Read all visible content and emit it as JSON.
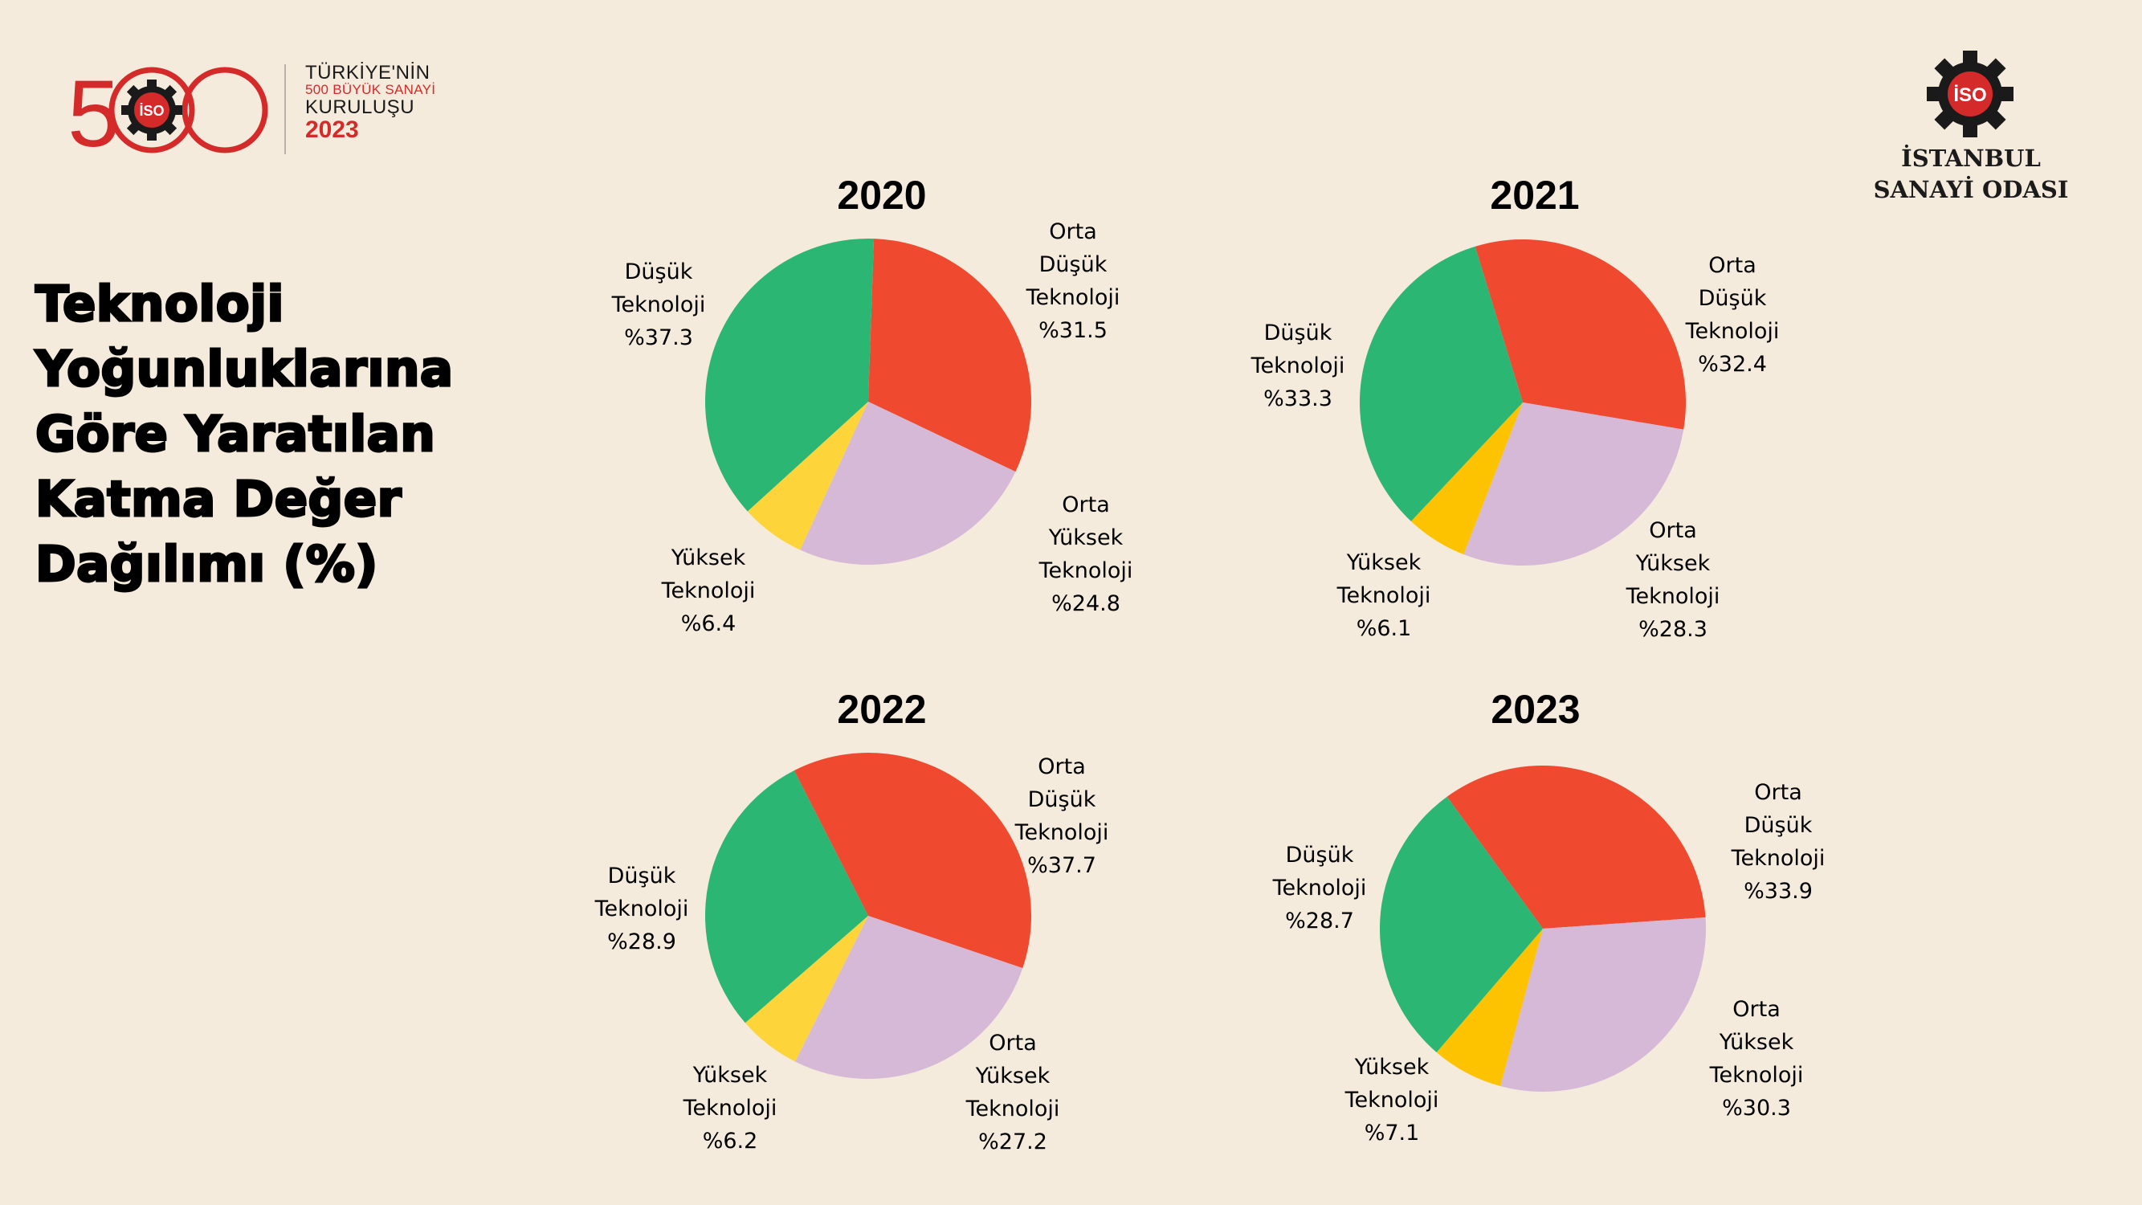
{
  "title": {
    "lines": [
      "Teknoloji",
      "Yoğunluklarına",
      "Göre Yaratılan",
      "Katma Değer",
      "Dağılımı (%)"
    ]
  },
  "logos": {
    "left": {
      "mark": "500",
      "badge": "İSO",
      "line1": "TÜRKİYE'NİN",
      "line2": "500 BÜYÜK SANAYİ",
      "line3": "KURULUŞU",
      "line4": "2023"
    },
    "right": {
      "badge": "İSO",
      "line1": "İSTANBUL",
      "line2": "SANAYİ ODASI"
    }
  },
  "colors": {
    "background": "#f4ebdc",
    "low_tech": "#2bb673",
    "medium_low_tech": "#ef4930",
    "medium_high_tech": "#d5b9d6",
    "high_tech": "#fdd53a",
    "brand_red": "#d52a2a"
  },
  "chart_data": [
    {
      "type": "pie",
      "title": "2020",
      "slices": [
        {
          "label": [
            "Orta",
            "Düşük",
            "Teknoloji"
          ],
          "value_text": "%31.5",
          "value": 31.5,
          "color": "#ef4930"
        },
        {
          "label": [
            "Orta",
            "Yüksek",
            "Teknoloji"
          ],
          "value_text": "%24.8",
          "value": 24.8,
          "color": "#d5b9d6"
        },
        {
          "label": [
            "Yüksek",
            "Teknoloji"
          ],
          "value_text": "%6.4",
          "value": 6.4,
          "color": "#fdd53a"
        },
        {
          "label": [
            "Düşük",
            "Teknoloji"
          ],
          "value_text": "%37.3",
          "value": 37.3,
          "color": "#2bb673"
        }
      ]
    },
    {
      "type": "pie",
      "title": "2021",
      "slices": [
        {
          "label": [
            "Orta",
            "Düşük",
            "Teknoloji"
          ],
          "value_text": "%32.4",
          "value": 32.4,
          "color": "#ef4930"
        },
        {
          "label": [
            "Orta",
            "Yüksek",
            "Teknoloji"
          ],
          "value_text": "%28.3",
          "value": 28.3,
          "color": "#d5b9d6"
        },
        {
          "label": [
            "Yüksek",
            "Teknoloji"
          ],
          "value_text": "%6.1",
          "value": 6.1,
          "color": "#fdc300"
        },
        {
          "label": [
            "Düşük",
            "Teknoloji"
          ],
          "value_text": "%33.3",
          "value": 33.3,
          "color": "#2bb673"
        }
      ]
    },
    {
      "type": "pie",
      "title": "2022",
      "slices": [
        {
          "label": [
            "Orta",
            "Düşük",
            "Teknoloji"
          ],
          "value_text": "%37.7",
          "value": 37.7,
          "color": "#ef4930"
        },
        {
          "label": [
            "Orta",
            "Yüksek",
            "Teknoloji"
          ],
          "value_text": "%27.2",
          "value": 27.2,
          "color": "#d5b9d6"
        },
        {
          "label": [
            "Yüksek",
            "Teknoloji"
          ],
          "value_text": "%6.2",
          "value": 6.2,
          "color": "#fdd53a"
        },
        {
          "label": [
            "Düşük",
            "Teknoloji"
          ],
          "value_text": "%28.9",
          "value": 28.9,
          "color": "#2bb673"
        }
      ]
    },
    {
      "type": "pie",
      "title": "2023",
      "slices": [
        {
          "label": [
            "Orta",
            "Düşük",
            "Teknoloji"
          ],
          "value_text": "%33.9",
          "value": 33.9,
          "color": "#ef4930"
        },
        {
          "label": [
            "Orta",
            "Yüksek",
            "Teknoloji"
          ],
          "value_text": "%30.3",
          "value": 30.3,
          "color": "#d5b9d6"
        },
        {
          "label": [
            "Yüksek",
            "Teknoloji"
          ],
          "value_text": "%7.1",
          "value": 7.1,
          "color": "#fdc300"
        },
        {
          "label": [
            "Düşük",
            "Teknoloji"
          ],
          "value_text": "%28.7",
          "value": 28.7,
          "color": "#2bb673"
        }
      ]
    }
  ]
}
